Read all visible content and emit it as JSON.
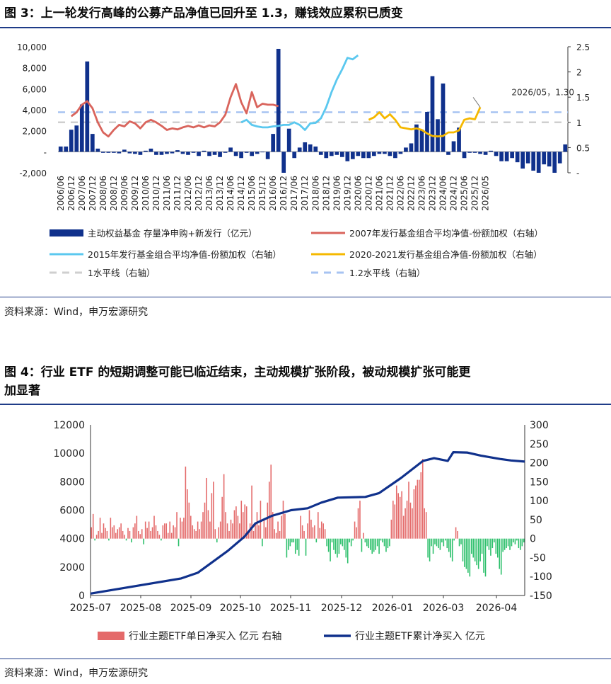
{
  "fig3": {
    "title": "图 3：上一轮发行高峰的公募产品净值已回升至 1.3，赚钱效应累积已质变",
    "source": "资料来源：Wind，申万宏源研究"
  },
  "fig4": {
    "title_line1": "图 4：行业 ETF 的短期调整可能已临近结束，主动规模扩张阶段，被动规模扩张可能更",
    "title_line2": "加显著",
    "source": "资料来源：Wind，申万宏源研究"
  },
  "colors": {
    "navy": "#10318c",
    "red_line": "#d9645c",
    "cyan": "#5bc8ef",
    "gold": "#f5b800",
    "gray_dash": "#cfcfcf",
    "blue_dash": "#a7c3f2",
    "bar_red": "#e46a6a",
    "bar_green": "#2bbf6a"
  },
  "chart_data": [
    {
      "type": "bar+line",
      "title": "上一轮发行高峰的公募产品净值已回升至 1.3，赚钱效应累积已质变",
      "x_ticks": [
        "2006/06",
        "2006/12",
        "2007/06",
        "2007/12",
        "2008/06",
        "2008/12",
        "2009/06",
        "2009/12",
        "2010/06",
        "2010/12",
        "2011/06",
        "2011/12",
        "2012/06",
        "2012/12",
        "2013/06",
        "2013/12",
        "2014/06",
        "2014/12",
        "2015/06",
        "2015/12",
        "2016/06",
        "2016/12",
        "2017/06",
        "2017/12",
        "2018/06",
        "2018/12",
        "2019/06",
        "2019/12",
        "2020/06",
        "2020/12",
        "2021/06",
        "2021/12",
        "2022/06",
        "2022/12",
        "2023/06",
        "2023/12",
        "2024/06",
        "2024/12",
        "2025/06",
        "2025/12",
        "2026/05"
      ],
      "ylim_left": [
        -2000,
        10000
      ],
      "yticks_left": [
        "10,000",
        "8,000",
        "6,000",
        "4,000",
        "2,000",
        "-",
        "-2,000"
      ],
      "ylim_right": [
        0,
        2.5
      ],
      "yticks_right": [
        "2.5",
        "2",
        "1.5",
        "1",
        "0.5",
        "-"
      ],
      "annotation": "2026/05，1.30",
      "legend": [
        "主动权益基金 存量净申购+新发行（亿元）",
        "2007年发行基金组合平均净值-份额加权（右轴）",
        "2015年发行基金组合平均净值-份额加权（右轴）",
        "2020-2021发行基金组合净值-份额加权（右轴）",
        "1水平线（右轴）",
        "1.2水平线（右轴）"
      ],
      "bars_quarterly": [
        500,
        500,
        2100,
        2500,
        4500,
        8600,
        1700,
        300,
        -100,
        -100,
        -100,
        -150,
        200,
        -150,
        -200,
        -300,
        100,
        300,
        -300,
        -300,
        -200,
        -150,
        150,
        -200,
        -300,
        -100,
        -400,
        100,
        -400,
        -300,
        -500,
        -100,
        400,
        -400,
        -600,
        -100,
        -400,
        -200,
        0,
        -700,
        1700,
        9800,
        -2000,
        2200,
        -600,
        400,
        900,
        700,
        500,
        -300,
        -600,
        -400,
        -300,
        -500,
        -900,
        -700,
        -400,
        -600,
        -600,
        -400,
        -200,
        -200,
        -400,
        -600,
        -200,
        400,
        800,
        2600,
        2100,
        3800,
        7200,
        3100,
        6500,
        -300,
        1000,
        2300,
        -600,
        -100,
        -100,
        -200,
        -300,
        100,
        -400,
        -900,
        -900,
        -600,
        -1000,
        -1600,
        -1100,
        -1800,
        -2000,
        -1200,
        -1400,
        -2000,
        -1100,
        700
      ],
      "series": [
        {
          "name": "2007年发行基金组合平均净值-份额加权（右轴）",
          "x_start": "2006/12",
          "x_step": "quarter",
          "values": [
            1.12,
            1.2,
            1.35,
            1.42,
            1.28,
            1.0,
            0.8,
            0.72,
            0.85,
            0.95,
            0.92,
            1.02,
            0.98,
            0.88,
            1.0,
            1.05,
            1.0,
            0.93,
            0.85,
            0.88,
            0.86,
            0.9,
            0.93,
            0.9,
            0.94,
            0.9,
            0.94,
            0.92,
            1.0,
            1.15,
            1.5,
            1.76,
            1.4,
            1.18,
            1.6,
            1.3,
            1.37,
            1.35,
            1.35,
            1.32
          ]
        },
        {
          "name": "2015年发行基金组合平均净值-份额加权（右轴）",
          "x_start": "2014/12",
          "x_step": "quarter",
          "values": [
            1.0,
            1.05,
            0.95,
            0.92,
            0.9,
            0.9,
            0.92,
            0.93,
            0.95,
            0.95,
            1.0,
            0.95,
            0.85,
            0.98,
            0.99,
            1.08,
            1.3,
            1.6,
            1.85,
            2.05,
            2.28,
            2.25,
            2.33
          ]
        },
        {
          "name": "2020-2021发行基金组合净值-份额加权（右轴）",
          "x_start": "2020/12",
          "x_step": "quarter",
          "values": [
            1.05,
            1.1,
            1.2,
            1.08,
            1.16,
            1.05,
            0.9,
            0.88,
            0.86,
            0.88,
            0.85,
            0.78,
            0.73,
            0.72,
            0.73,
            0.8,
            0.8,
            0.84,
            1.05,
            1.08,
            1.06,
            1.3
          ]
        }
      ],
      "reference_lines": [
        1.0,
        1.2
      ]
    },
    {
      "type": "bar+line",
      "title": "行业 ETF 的短期调整可能已临近结束，主动规模扩张阶段，被动规模扩张可能更加显著",
      "x_ticks": [
        "2025-07",
        "2025-08",
        "2025-09",
        "2025-10",
        "2025-11",
        "2025-12",
        "2026-01",
        "2026-03",
        "2026-04"
      ],
      "ylim_left": [
        0,
        12000
      ],
      "yticks_left": [
        "12000",
        "10000",
        "8000",
        "6000",
        "4000",
        "2000",
        "0"
      ],
      "ylim_right": [
        -150,
        300
      ],
      "yticks_right": [
        "300",
        "250",
        "200",
        "150",
        "100",
        "50",
        "0",
        "-50",
        "-100",
        "-150"
      ],
      "legend": [
        "行业主题ETF单日净买入 亿元 右轴",
        "行业主题ETF累计净买入 亿元"
      ],
      "daily_net_buy": [
        30,
        65,
        -5,
        10,
        20,
        55,
        15,
        40,
        28,
        20,
        -5,
        55,
        30,
        35,
        15,
        25,
        30,
        40,
        20,
        10,
        -5,
        28,
        20,
        -10,
        30,
        40,
        60,
        20,
        12,
        25,
        -15,
        45,
        28,
        45,
        20,
        30,
        60,
        35,
        20,
        10,
        -5,
        35,
        40,
        40,
        15,
        45,
        15,
        35,
        30,
        70,
        -20,
        55,
        45,
        55,
        190,
        130,
        95,
        60,
        35,
        25,
        20,
        45,
        25,
        45,
        70,
        95,
        160,
        75,
        45,
        120,
        150,
        25,
        -10,
        30,
        45,
        110,
        170,
        70,
        40,
        20,
        50,
        40,
        75,
        85,
        60,
        40,
        100,
        70,
        90,
        85,
        15,
        40,
        140,
        20,
        40,
        70,
        35,
        100,
        -20,
        50,
        30,
        95,
        150,
        195,
        70,
        25,
        15,
        45,
        20,
        60,
        100,
        65,
        -50,
        -30,
        -20,
        -10,
        -10,
        -40,
        -30,
        -45,
        60,
        35,
        20,
        -45,
        40,
        75,
        50,
        30,
        35,
        -10,
        70,
        28,
        45,
        40,
        25,
        -20,
        -35,
        -60,
        -10,
        -30,
        -40,
        -50,
        -40,
        -15,
        -20,
        -30,
        -50,
        -65,
        -10,
        -20,
        -5,
        45,
        30,
        80,
        100,
        -35,
        15,
        -10,
        -20,
        -25,
        -30,
        -40,
        -35,
        -30,
        -20,
        -40,
        -5,
        -10,
        -20,
        -35,
        -25,
        -20,
        50,
        100,
        90,
        140,
        120,
        110,
        125,
        60,
        80,
        100,
        150,
        95,
        80,
        130,
        140,
        155,
        155,
        175,
        210,
        80,
        70,
        -50,
        -60,
        -20,
        -40,
        -15,
        -20,
        -25,
        -30,
        -10,
        -20,
        -5,
        -25,
        -35,
        -50,
        -60,
        -5,
        30,
        20,
        -20,
        -15,
        -60,
        -75,
        -80,
        -90,
        -100,
        -40,
        -50,
        -60,
        -70,
        -80,
        -60,
        -40,
        -90,
        -100,
        -20,
        -30,
        -45,
        -25,
        -10,
        -40,
        -50,
        -80,
        -95,
        -35,
        -30,
        -25,
        -20,
        -30,
        -20,
        -10,
        -15,
        -5,
        -25,
        -30,
        -20,
        -10
      ],
      "cumulative_net_buy_key_points": [
        [
          0,
          -145
        ],
        [
          0.33,
          -105
        ],
        [
          0.39,
          -90
        ],
        [
          0.5,
          -32
        ],
        [
          0.56,
          5
        ],
        [
          0.6,
          40
        ],
        [
          0.66,
          60
        ],
        [
          0.73,
          75
        ],
        [
          0.79,
          80
        ],
        [
          0.84,
          95
        ],
        [
          0.9,
          108
        ],
        [
          1.0,
          110
        ],
        [
          1.05,
          120
        ],
        [
          1.13,
          160
        ],
        [
          1.21,
          205
        ],
        [
          1.25,
          212
        ],
        [
          1.3,
          205
        ],
        [
          1.32,
          228
        ],
        [
          1.37,
          227
        ],
        [
          1.42,
          219
        ],
        [
          1.49,
          210
        ],
        [
          1.53,
          206
        ],
        [
          1.58,
          203
        ]
      ]
    }
  ]
}
